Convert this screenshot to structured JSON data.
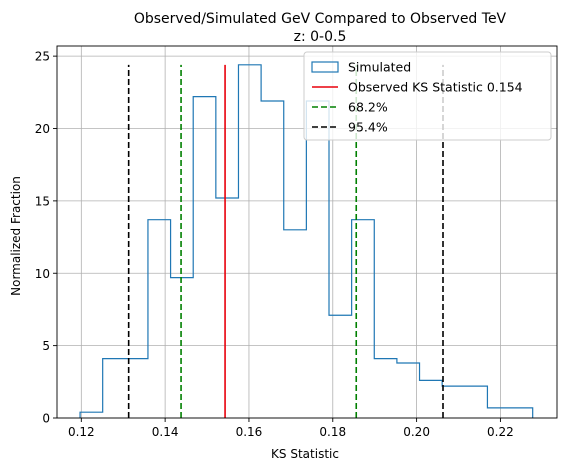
{
  "chart_data": {
    "type": "histogram",
    "title": "Observed/Simulated GeV Compared to Observed TeV",
    "subtitle": "z: 0-0.5",
    "xlabel": "KS Statistic",
    "ylabel": "Normalized Fraction",
    "xlim": [
      0.1142,
      0.2335
    ],
    "ylim": [
      0,
      25.7
    ],
    "xticks": [
      0.12,
      0.14,
      0.16,
      0.18,
      0.2,
      0.22
    ],
    "xtick_labels": [
      "0.12",
      "0.14",
      "0.16",
      "0.18",
      "0.20",
      "0.22"
    ],
    "yticks": [
      0,
      5,
      10,
      15,
      20,
      25
    ],
    "ytick_labels": [
      "0",
      "5",
      "10",
      "15",
      "20",
      "25"
    ],
    "grid": true,
    "legend_position": "top-right",
    "histogram": {
      "name": "Simulated",
      "color": "#1f77b4",
      "bin_edges": [
        0.1197,
        0.1251,
        0.1305,
        0.1359,
        0.1413,
        0.1467,
        0.1521,
        0.1575,
        0.1629,
        0.1683,
        0.1737,
        0.1791,
        0.1845,
        0.1899,
        0.1953,
        0.2007,
        0.2061,
        0.2115,
        0.2169,
        0.2223,
        0.2277
      ],
      "values": [
        0.4,
        4.1,
        4.1,
        13.7,
        9.7,
        22.2,
        15.2,
        24.4,
        21.9,
        13.0,
        21.9,
        7.1,
        13.7,
        4.1,
        3.8,
        2.6,
        2.2,
        2.2,
        0.7,
        0.7
      ]
    },
    "vlines": [
      {
        "name": "Observed KS Statistic 0.154",
        "x": 0.1543,
        "ymax": 24.4,
        "color": "#e8000b",
        "style": "solid"
      },
      {
        "name": "68.2%",
        "x": 0.1438,
        "ymax": 24.4,
        "color": "#008000",
        "style": "dashed"
      },
      {
        "name": "68.2%",
        "x": 0.1856,
        "ymax": 24.4,
        "color": "#008000",
        "style": "dashed"
      },
      {
        "name": "95.4%",
        "x": 0.1313,
        "ymax": 24.4,
        "color": "#000000",
        "style": "dashed"
      },
      {
        "name": "95.4%",
        "x": 0.2063,
        "ymax": 24.4,
        "color": "#000000",
        "style": "dashed"
      }
    ],
    "legend": [
      {
        "label": "Simulated",
        "kind": "box",
        "color": "#1f77b4"
      },
      {
        "label": "Observed KS Statistic 0.154",
        "kind": "solid",
        "color": "#e8000b"
      },
      {
        "label": "68.2%",
        "kind": "dashed",
        "color": "#008000"
      },
      {
        "label": "95.4%",
        "kind": "dashed",
        "color": "#000000"
      }
    ]
  }
}
